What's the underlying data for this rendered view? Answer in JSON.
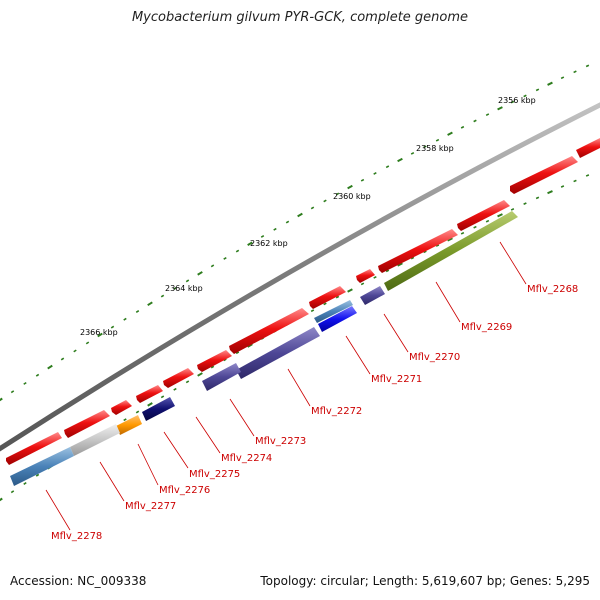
{
  "title": "Mycobacterium gilvum PYR-GCK, complete genome",
  "footer": {
    "accession": "Accession: NC_009338",
    "topology": "Topology: circular; Length: 5,619,607 bp; Genes: 5,295"
  },
  "colors": {
    "backbone": "#8c8c8c",
    "forward_gene": "#ee1111",
    "tick": "#2e7d1e",
    "label_line": "#cc0000"
  },
  "scale_labels": [
    "2356 kbp",
    "2358 kbp",
    "2360 kbp",
    "2362 kbp",
    "2364 kbp",
    "2366 kbp"
  ],
  "gene_labels": [
    "Mflv_2268",
    "Mflv_2269",
    "Mflv_2270",
    "Mflv_2271",
    "Mflv_2272",
    "Mflv_2273",
    "Mflv_2274",
    "Mflv_2275",
    "Mflv_2276",
    "Mflv_2277",
    "Mflv_2278"
  ]
}
